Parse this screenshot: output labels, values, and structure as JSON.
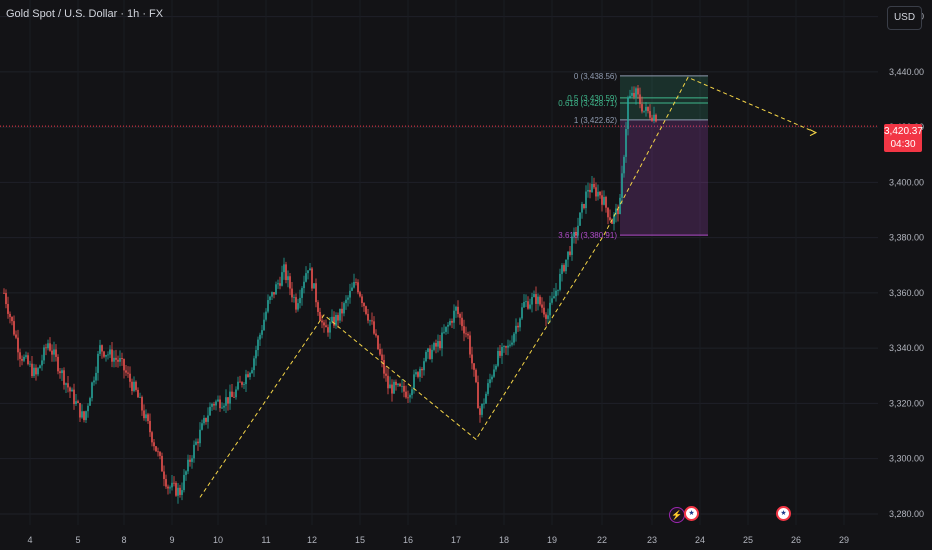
{
  "header": {
    "title": "Gold Spot / U.S. Dollar · 1h · FX",
    "currency_button": "USD"
  },
  "price_tag": {
    "price": "3,420.37",
    "countdown": "04:30"
  },
  "colors": {
    "background": "#131316",
    "up": "#26a69a",
    "down": "#ef5350",
    "trendline": "#f5d547",
    "price_line": "#f23645",
    "fib_green": "#3fb68b",
    "fib_purple": "#b04cc9"
  },
  "events": [
    {
      "icon": "lightning-icon",
      "glyph": "⚡"
    },
    {
      "icon": "us-flag-icon",
      "glyph": "★"
    },
    {
      "icon": "us-flag-icon",
      "glyph": "★"
    }
  ],
  "chart_data": {
    "type": "candlestick",
    "title": "Gold Spot / U.S. Dollar · 1h · FX",
    "ylim": [
      3276,
      3466
    ],
    "y_ticks": [
      "3,460.00",
      "3,440.00",
      "3,420.00",
      "3,400.00",
      "3,380.00",
      "3,360.00",
      "3,340.00",
      "3,320.00",
      "3,300.00",
      "3,280.00"
    ],
    "y_tick_values": [
      3460,
      3440,
      3420,
      3400,
      3380,
      3360,
      3340,
      3320,
      3300,
      3280
    ],
    "x_ticks": [
      "4",
      "5",
      "8",
      "9",
      "10",
      "11",
      "12",
      "15",
      "16",
      "17",
      "18",
      "19",
      "22",
      "23",
      "24",
      "25",
      "26",
      "29"
    ],
    "current_price": 3420.37,
    "anchors": [
      {
        "i": 0,
        "p": 3360
      },
      {
        "i": 8,
        "p": 3338
      },
      {
        "i": 16,
        "p": 3330
      },
      {
        "i": 22,
        "p": 3342
      },
      {
        "i": 32,
        "p": 3326
      },
      {
        "i": 40,
        "p": 3314
      },
      {
        "i": 48,
        "p": 3340
      },
      {
        "i": 58,
        "p": 3335
      },
      {
        "i": 66,
        "p": 3324
      },
      {
        "i": 74,
        "p": 3308
      },
      {
        "i": 82,
        "p": 3290
      },
      {
        "i": 88,
        "p": 3288
      },
      {
        "i": 94,
        "p": 3302
      },
      {
        "i": 104,
        "p": 3320
      },
      {
        "i": 114,
        "p": 3322
      },
      {
        "i": 124,
        "p": 3334
      },
      {
        "i": 132,
        "p": 3356
      },
      {
        "i": 140,
        "p": 3368
      },
      {
        "i": 146,
        "p": 3356
      },
      {
        "i": 152,
        "p": 3370
      },
      {
        "i": 160,
        "p": 3346
      },
      {
        "i": 168,
        "p": 3352
      },
      {
        "i": 176,
        "p": 3364
      },
      {
        "i": 184,
        "p": 3348
      },
      {
        "i": 192,
        "p": 3326
      },
      {
        "i": 202,
        "p": 3324
      },
      {
        "i": 210,
        "p": 3336
      },
      {
        "i": 218,
        "p": 3342
      },
      {
        "i": 226,
        "p": 3354
      },
      {
        "i": 232,
        "p": 3344
      },
      {
        "i": 238,
        "p": 3316
      },
      {
        "i": 246,
        "p": 3336
      },
      {
        "i": 252,
        "p": 3340
      },
      {
        "i": 260,
        "p": 3356
      },
      {
        "i": 266,
        "p": 3358
      },
      {
        "i": 272,
        "p": 3352
      },
      {
        "i": 280,
        "p": 3370
      },
      {
        "i": 286,
        "p": 3382
      },
      {
        "i": 292,
        "p": 3398
      },
      {
        "i": 298,
        "p": 3396
      },
      {
        "i": 304,
        "p": 3386
      },
      {
        "i": 308,
        "p": 3392
      },
      {
        "i": 312,
        "p": 3430
      },
      {
        "i": 316,
        "p": 3432
      },
      {
        "i": 320,
        "p": 3426
      },
      {
        "i": 326,
        "p": 3424
      }
    ],
    "trendline": [
      {
        "i": 98,
        "p": 3286
      },
      {
        "i": 160,
        "p": 3352
      },
      {
        "i": 236,
        "p": 3307
      },
      {
        "i": 300,
        "p": 3381
      },
      {
        "i": 342,
        "p": 3438
      },
      {
        "i": 406,
        "p": 3418
      }
    ],
    "fib": {
      "levels": [
        {
          "ratio": "0",
          "value": 3438.56,
          "label": "0 (3,438.56)"
        },
        {
          "ratio": "0.5",
          "value": 3430.59,
          "label": "0.5 (3,430.59)"
        },
        {
          "ratio": "0.618",
          "value": 3428.71,
          "label": "0.618 (3,428.71)"
        },
        {
          "ratio": "1",
          "value": 3422.62,
          "label": "1 (3,422.62)"
        },
        {
          "ratio": "3.618",
          "value": 3380.91,
          "label": "3.618 (3,380.91)"
        }
      ],
      "i_start": 298,
      "i_end": 338
    }
  }
}
